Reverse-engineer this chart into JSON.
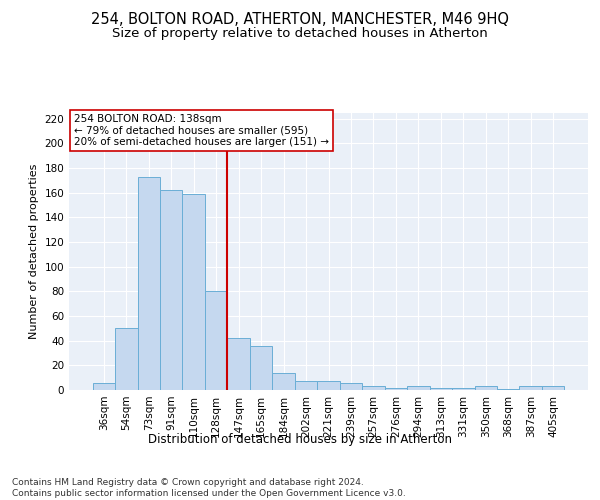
{
  "title1": "254, BOLTON ROAD, ATHERTON, MANCHESTER, M46 9HQ",
  "title2": "Size of property relative to detached houses in Atherton",
  "xlabel": "Distribution of detached houses by size in Atherton",
  "ylabel": "Number of detached properties",
  "categories": [
    "36sqm",
    "54sqm",
    "73sqm",
    "91sqm",
    "110sqm",
    "128sqm",
    "147sqm",
    "165sqm",
    "184sqm",
    "202sqm",
    "221sqm",
    "239sqm",
    "257sqm",
    "276sqm",
    "294sqm",
    "313sqm",
    "331sqm",
    "350sqm",
    "368sqm",
    "387sqm",
    "405sqm"
  ],
  "values": [
    6,
    50,
    173,
    162,
    159,
    80,
    42,
    36,
    14,
    7,
    7,
    6,
    3,
    2,
    3,
    2,
    2,
    3,
    1,
    3,
    3
  ],
  "bar_color": "#c5d8ef",
  "bar_edge_color": "#6aaed6",
  "vline_x_index": 6,
  "vline_color": "#cc0000",
  "annotation_text": "254 BOLTON ROAD: 138sqm\n← 79% of detached houses are smaller (595)\n20% of semi-detached houses are larger (151) →",
  "annotation_box_facecolor": "#ffffff",
  "annotation_box_edgecolor": "#cc0000",
  "ylim": [
    0,
    225
  ],
  "yticks": [
    0,
    20,
    40,
    60,
    80,
    100,
    120,
    140,
    160,
    180,
    200,
    220
  ],
  "bg_color": "#eaf0f8",
  "grid_color": "#ffffff",
  "footer": "Contains HM Land Registry data © Crown copyright and database right 2024.\nContains public sector information licensed under the Open Government Licence v3.0.",
  "title1_fontsize": 10.5,
  "title2_fontsize": 9.5,
  "xlabel_fontsize": 8.5,
  "ylabel_fontsize": 8,
  "tick_fontsize": 7.5,
  "footer_fontsize": 6.5,
  "annot_fontsize": 7.5
}
